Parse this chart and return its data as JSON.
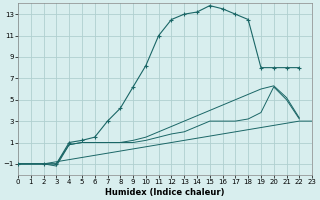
{
  "xlabel": "Humidex (Indice chaleur)",
  "bg_color": "#d8eeee",
  "grid_color": "#b0d0d0",
  "line_color": "#1a6666",
  "xlim": [
    0,
    23
  ],
  "ylim": [
    -2,
    14
  ],
  "xticks": [
    0,
    1,
    2,
    3,
    4,
    5,
    6,
    7,
    8,
    9,
    10,
    11,
    12,
    13,
    14,
    15,
    16,
    17,
    18,
    19,
    20,
    21,
    22,
    23
  ],
  "yticks": [
    -1,
    1,
    3,
    5,
    7,
    9,
    11,
    13
  ],
  "line1_x": [
    0,
    2,
    22,
    23
  ],
  "line1_y": [
    -1,
    -1,
    3,
    3
  ],
  "line2_x": [
    0,
    2,
    3,
    4,
    5,
    6,
    7,
    8,
    9,
    10,
    11,
    12,
    13,
    14,
    15,
    16,
    17,
    18,
    19,
    20,
    21,
    22
  ],
  "line2_y": [
    -1,
    -1,
    -1.2,
    0.8,
    1.0,
    1.0,
    1.0,
    1.0,
    1.0,
    1.2,
    1.5,
    1.8,
    2.0,
    2.5,
    3.0,
    3.0,
    3.0,
    3.2,
    3.8,
    6.2,
    5.0,
    3.2
  ],
  "line3_x": [
    0,
    2,
    3,
    4,
    5,
    6,
    7,
    8,
    9,
    10,
    11,
    12,
    13,
    14,
    15,
    16,
    17,
    18,
    19,
    20,
    21,
    22
  ],
  "line3_y": [
    -1,
    -1,
    -1,
    0.8,
    1.0,
    1.0,
    1.0,
    1.0,
    1.2,
    1.5,
    2.0,
    2.5,
    3.0,
    3.5,
    4.0,
    4.5,
    5.0,
    5.5,
    6.0,
    6.3,
    5.2,
    3.3
  ],
  "main_x": [
    0,
    2,
    3,
    4,
    5,
    6,
    7,
    8,
    9,
    10,
    11,
    12,
    13,
    14,
    15,
    16,
    17,
    18,
    19,
    20,
    21,
    22
  ],
  "main_y": [
    -1,
    -1,
    -1,
    1.0,
    1.2,
    1.5,
    3.0,
    4.2,
    6.2,
    8.2,
    11.0,
    12.5,
    13.0,
    13.2,
    13.8,
    13.5,
    13.0,
    12.5,
    8.0,
    8.0,
    8.0,
    8.0
  ]
}
